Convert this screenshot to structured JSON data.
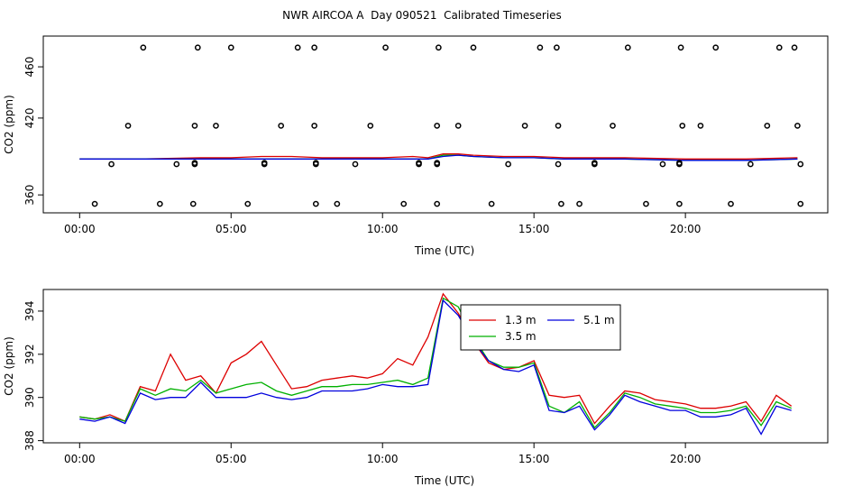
{
  "figure_title": "NWR AIRCOA A  Day 090521  Calibrated Timeseries",
  "colors": {
    "red": "#dd0000",
    "green": "#00b000",
    "blue": "#0000dd"
  },
  "chart_data": [
    {
      "type": "scatter",
      "title": "",
      "xlabel": "Time (UTC)",
      "ylabel": "CO2 (ppm)",
      "xlim": [
        -1.2,
        24.7
      ],
      "ylim": [
        346,
        484
      ],
      "xticks": [
        0,
        5,
        10,
        15,
        20
      ],
      "xtick_labels": [
        "00:00",
        "05:00",
        "10:00",
        "15:00",
        "20:00"
      ],
      "yticks": [
        360,
        420,
        460
      ],
      "ytick_labels": [
        "360",
        "420",
        "460"
      ],
      "points": [
        [
          0.5,
          353
        ],
        [
          2.65,
          353
        ],
        [
          3.75,
          353
        ],
        [
          5.55,
          353
        ],
        [
          7.8,
          353
        ],
        [
          8.5,
          353
        ],
        [
          10.7,
          353
        ],
        [
          11.8,
          353
        ],
        [
          13.6,
          353
        ],
        [
          15.9,
          353
        ],
        [
          16.5,
          353
        ],
        [
          18.7,
          353
        ],
        [
          19.8,
          353
        ],
        [
          21.5,
          353
        ],
        [
          23.8,
          353
        ],
        [
          1.05,
          384
        ],
        [
          3.2,
          384
        ],
        [
          3.8,
          384
        ],
        [
          3.8,
          385
        ],
        [
          6.1,
          384
        ],
        [
          6.1,
          385
        ],
        [
          7.8,
          384
        ],
        [
          7.8,
          385
        ],
        [
          9.1,
          384
        ],
        [
          11.2,
          384
        ],
        [
          11.2,
          385
        ],
        [
          11.8,
          384
        ],
        [
          11.8,
          385
        ],
        [
          14.15,
          384
        ],
        [
          15.8,
          384
        ],
        [
          17.0,
          384
        ],
        [
          17.0,
          385
        ],
        [
          19.25,
          384
        ],
        [
          19.8,
          384
        ],
        [
          19.8,
          385
        ],
        [
          22.15,
          384
        ],
        [
          23.8,
          384
        ],
        [
          1.6,
          414
        ],
        [
          3.8,
          414
        ],
        [
          4.5,
          414
        ],
        [
          6.65,
          414
        ],
        [
          7.75,
          414
        ],
        [
          9.6,
          414
        ],
        [
          11.8,
          414
        ],
        [
          12.5,
          414
        ],
        [
          14.7,
          414
        ],
        [
          15.8,
          414
        ],
        [
          17.6,
          414
        ],
        [
          19.9,
          414
        ],
        [
          20.5,
          414
        ],
        [
          22.7,
          414
        ],
        [
          23.7,
          414
        ],
        [
          2.1,
          475
        ],
        [
          3.9,
          475
        ],
        [
          5.0,
          475
        ],
        [
          7.2,
          475
        ],
        [
          7.75,
          475
        ],
        [
          10.1,
          475
        ],
        [
          11.85,
          475
        ],
        [
          13.0,
          475
        ],
        [
          15.2,
          475
        ],
        [
          15.75,
          475
        ],
        [
          18.1,
          475
        ],
        [
          19.85,
          475
        ],
        [
          21.0,
          475
        ],
        [
          23.1,
          475
        ],
        [
          23.6,
          475
        ]
      ],
      "series": [
        {
          "name": "1.3 m",
          "color": "#dd0000",
          "x": [
            0,
            2,
            4,
            5,
            6,
            7,
            8,
            10,
            11,
            11.5,
            12,
            12.5,
            13,
            14,
            15,
            16,
            18,
            20,
            22,
            23.7
          ],
          "y": [
            388,
            388,
            389,
            389,
            390,
            390,
            389,
            389,
            390,
            389,
            392,
            392,
            391,
            390,
            390,
            389,
            389,
            388,
            388,
            389
          ]
        },
        {
          "name": "3.5 m",
          "color": "#00b000",
          "x": [
            0,
            2,
            4,
            6,
            8,
            10,
            11.5,
            12,
            12.5,
            13,
            14,
            15,
            16,
            18,
            20,
            22,
            23.7
          ],
          "y": [
            388,
            388,
            388,
            388,
            388,
            388,
            388,
            391,
            391,
            390,
            389,
            389,
            388,
            388,
            387,
            387,
            388
          ]
        },
        {
          "name": "5.1 m",
          "color": "#0000dd",
          "x": [
            0,
            2,
            4,
            6,
            8,
            10,
            11.5,
            12,
            12.5,
            13,
            14,
            15,
            16,
            18,
            20,
            22,
            23.7
          ],
          "y": [
            388,
            388,
            388,
            388,
            388,
            388,
            388,
            390,
            391,
            390,
            389,
            389,
            388,
            388,
            387,
            387,
            388
          ]
        }
      ]
    },
    {
      "type": "line",
      "title": "",
      "xlabel": "Time (UTC)",
      "ylabel": "CO2 (ppm)",
      "xlim": [
        -1.2,
        24.7
      ],
      "ylim": [
        387.9,
        395.0
      ],
      "xticks": [
        0,
        5,
        10,
        15,
        20
      ],
      "xtick_labels": [
        "00:00",
        "05:00",
        "10:00",
        "15:00",
        "20:00"
      ],
      "yticks": [
        388,
        390,
        392,
        394
      ],
      "ytick_labels": [
        "388",
        "390",
        "392",
        "394"
      ],
      "legend": {
        "position": "top-center",
        "columns": 2
      },
      "x": [
        0,
        0.5,
        1,
        1.5,
        2,
        2.5,
        3,
        3.5,
        4,
        4.5,
        5,
        5.5,
        6,
        6.5,
        7,
        7.5,
        8,
        8.5,
        9,
        9.5,
        10,
        10.5,
        11,
        11.5,
        12,
        12.5,
        13,
        13.5,
        14,
        14.5,
        15,
        15.5,
        16,
        16.5,
        17,
        17.5,
        18,
        18.5,
        19,
        19.5,
        20,
        20.5,
        21,
        21.5,
        22,
        22.5,
        23,
        23.5
      ],
      "series": [
        {
          "name": "1.3 m",
          "color": "#dd0000",
          "values": [
            389.1,
            389.0,
            389.2,
            388.9,
            390.5,
            390.3,
            392.0,
            390.8,
            391.0,
            390.2,
            391.6,
            392.0,
            392.6,
            391.5,
            390.4,
            390.5,
            390.8,
            390.9,
            391.0,
            390.9,
            391.1,
            391.8,
            391.5,
            392.8,
            394.8,
            393.9,
            392.6,
            391.6,
            391.3,
            391.4,
            391.7,
            390.1,
            390.0,
            390.1,
            388.8,
            389.6,
            390.3,
            390.2,
            389.9,
            389.8,
            389.7,
            389.5,
            389.5,
            389.6,
            389.8,
            388.9,
            390.1,
            389.6
          ]
        },
        {
          "name": "3.5 m",
          "color": "#00b000",
          "values": [
            389.1,
            389.0,
            389.1,
            388.9,
            390.4,
            390.1,
            390.4,
            390.3,
            390.8,
            390.2,
            390.4,
            390.6,
            390.7,
            390.3,
            390.1,
            390.3,
            390.5,
            390.5,
            390.6,
            390.6,
            390.7,
            390.8,
            390.6,
            390.9,
            394.6,
            394.2,
            392.8,
            391.7,
            391.4,
            391.4,
            391.6,
            389.6,
            389.3,
            389.8,
            388.6,
            389.3,
            390.2,
            390.0,
            389.7,
            389.6,
            389.5,
            389.3,
            389.3,
            389.4,
            389.6,
            388.7,
            389.8,
            389.5
          ]
        },
        {
          "name": "5.1 m",
          "color": "#0000dd",
          "values": [
            389.0,
            388.9,
            389.1,
            388.8,
            390.2,
            389.9,
            390.0,
            390.0,
            390.7,
            390.0,
            390.0,
            390.0,
            390.2,
            390.0,
            389.9,
            390.0,
            390.3,
            390.3,
            390.3,
            390.4,
            390.6,
            390.5,
            390.5,
            390.6,
            394.5,
            393.8,
            392.6,
            391.7,
            391.3,
            391.2,
            391.5,
            389.4,
            389.3,
            389.6,
            388.5,
            389.2,
            390.1,
            389.8,
            389.6,
            389.4,
            389.4,
            389.1,
            389.1,
            389.2,
            389.5,
            388.3,
            389.6,
            389.4
          ]
        }
      ]
    }
  ]
}
